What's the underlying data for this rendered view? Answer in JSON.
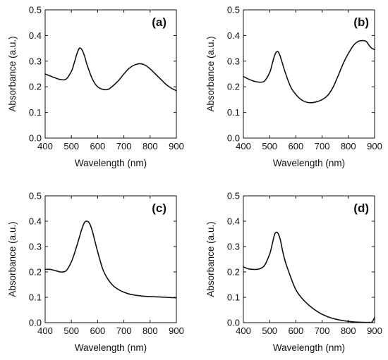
{
  "chart_data": [
    {
      "type": "line",
      "panel_label": "(a)",
      "xlabel": "Wavelength (nm)",
      "ylabel": "Absorbance (a.u.)",
      "xlim": [
        400,
        900
      ],
      "ylim": [
        0,
        0.5
      ],
      "xticks": [
        "400",
        "500",
        "600",
        "700",
        "800",
        "900"
      ],
      "yticks": [
        "0.0",
        "0.1",
        "0.2",
        "0.3",
        "0.4",
        "0.5"
      ],
      "series": [
        {
          "x": [
            400,
            420,
            440,
            460,
            480,
            500,
            510,
            520,
            530,
            540,
            550,
            560,
            580,
            600,
            620,
            640,
            660,
            680,
            700,
            720,
            740,
            760,
            780,
            800,
            820,
            840,
            860,
            880,
            900
          ],
          "y": [
            0.25,
            0.242,
            0.234,
            0.228,
            0.23,
            0.26,
            0.29,
            0.325,
            0.35,
            0.345,
            0.32,
            0.285,
            0.23,
            0.2,
            0.19,
            0.19,
            0.205,
            0.225,
            0.25,
            0.272,
            0.285,
            0.29,
            0.285,
            0.27,
            0.25,
            0.23,
            0.21,
            0.195,
            0.185
          ]
        }
      ]
    },
    {
      "type": "line",
      "panel_label": "(b)",
      "xlabel": "Wavelength (nm)",
      "ylabel": "Absorbance (a.u.)",
      "xlim": [
        400,
        900
      ],
      "ylim": [
        0,
        0.5
      ],
      "xticks": [
        "400",
        "500",
        "600",
        "700",
        "800",
        "900"
      ],
      "yticks": [
        "0.0",
        "0.1",
        "0.2",
        "0.3",
        "0.4",
        "0.5"
      ],
      "series": [
        {
          "x": [
            400,
            420,
            440,
            460,
            480,
            500,
            510,
            520,
            530,
            540,
            560,
            580,
            600,
            620,
            640,
            660,
            680,
            700,
            720,
            740,
            760,
            780,
            800,
            820,
            840,
            860,
            870,
            880,
            890,
            900
          ],
          "y": [
            0.24,
            0.23,
            0.222,
            0.218,
            0.222,
            0.255,
            0.29,
            0.325,
            0.338,
            0.32,
            0.255,
            0.2,
            0.17,
            0.15,
            0.14,
            0.138,
            0.142,
            0.15,
            0.165,
            0.195,
            0.24,
            0.29,
            0.33,
            0.362,
            0.378,
            0.38,
            0.375,
            0.36,
            0.35,
            0.345
          ]
        }
      ]
    },
    {
      "type": "line",
      "panel_label": "(c)",
      "xlabel": "Wavelength (nm)",
      "ylabel": "Absorbance (a.u.)",
      "xlim": [
        400,
        900
      ],
      "ylim": [
        0,
        0.5
      ],
      "xticks": [
        "400",
        "500",
        "600",
        "700",
        "800",
        "900"
      ],
      "yticks": [
        "0.0",
        "0.1",
        "0.2",
        "0.3",
        "0.4",
        "0.5"
      ],
      "series": [
        {
          "x": [
            400,
            420,
            440,
            460,
            480,
            500,
            520,
            540,
            550,
            560,
            570,
            580,
            600,
            620,
            640,
            660,
            680,
            700,
            720,
            740,
            760,
            780,
            800,
            820,
            840,
            860,
            880,
            900
          ],
          "y": [
            0.21,
            0.21,
            0.205,
            0.2,
            0.205,
            0.24,
            0.3,
            0.37,
            0.395,
            0.4,
            0.39,
            0.36,
            0.28,
            0.21,
            0.17,
            0.145,
            0.13,
            0.12,
            0.113,
            0.109,
            0.106,
            0.104,
            0.103,
            0.102,
            0.101,
            0.1,
            0.099,
            0.098
          ]
        }
      ]
    },
    {
      "type": "line",
      "panel_label": "(d)",
      "xlabel": "Wavelength (nm)",
      "ylabel": "Absorbance (a.u.)",
      "xlim": [
        400,
        900
      ],
      "ylim": [
        0,
        0.5
      ],
      "xticks": [
        "400",
        "500",
        "600",
        "700",
        "800",
        "900"
      ],
      "yticks": [
        "0.0",
        "0.1",
        "0.2",
        "0.3",
        "0.4",
        "0.5"
      ],
      "series": [
        {
          "x": [
            400,
            420,
            440,
            460,
            480,
            500,
            510,
            520,
            530,
            540,
            550,
            560,
            580,
            600,
            620,
            640,
            660,
            680,
            700,
            720,
            740,
            760,
            780,
            800,
            820,
            840,
            860,
            880,
            890,
            895,
            900
          ],
          "y": [
            0.22,
            0.212,
            0.21,
            0.212,
            0.225,
            0.27,
            0.31,
            0.35,
            0.355,
            0.33,
            0.28,
            0.24,
            0.18,
            0.13,
            0.1,
            0.078,
            0.06,
            0.045,
            0.033,
            0.024,
            0.017,
            0.012,
            0.008,
            0.005,
            0.003,
            0.002,
            0.001,
            0.001,
            0.002,
            0.01,
            0.02
          ]
        }
      ]
    }
  ]
}
